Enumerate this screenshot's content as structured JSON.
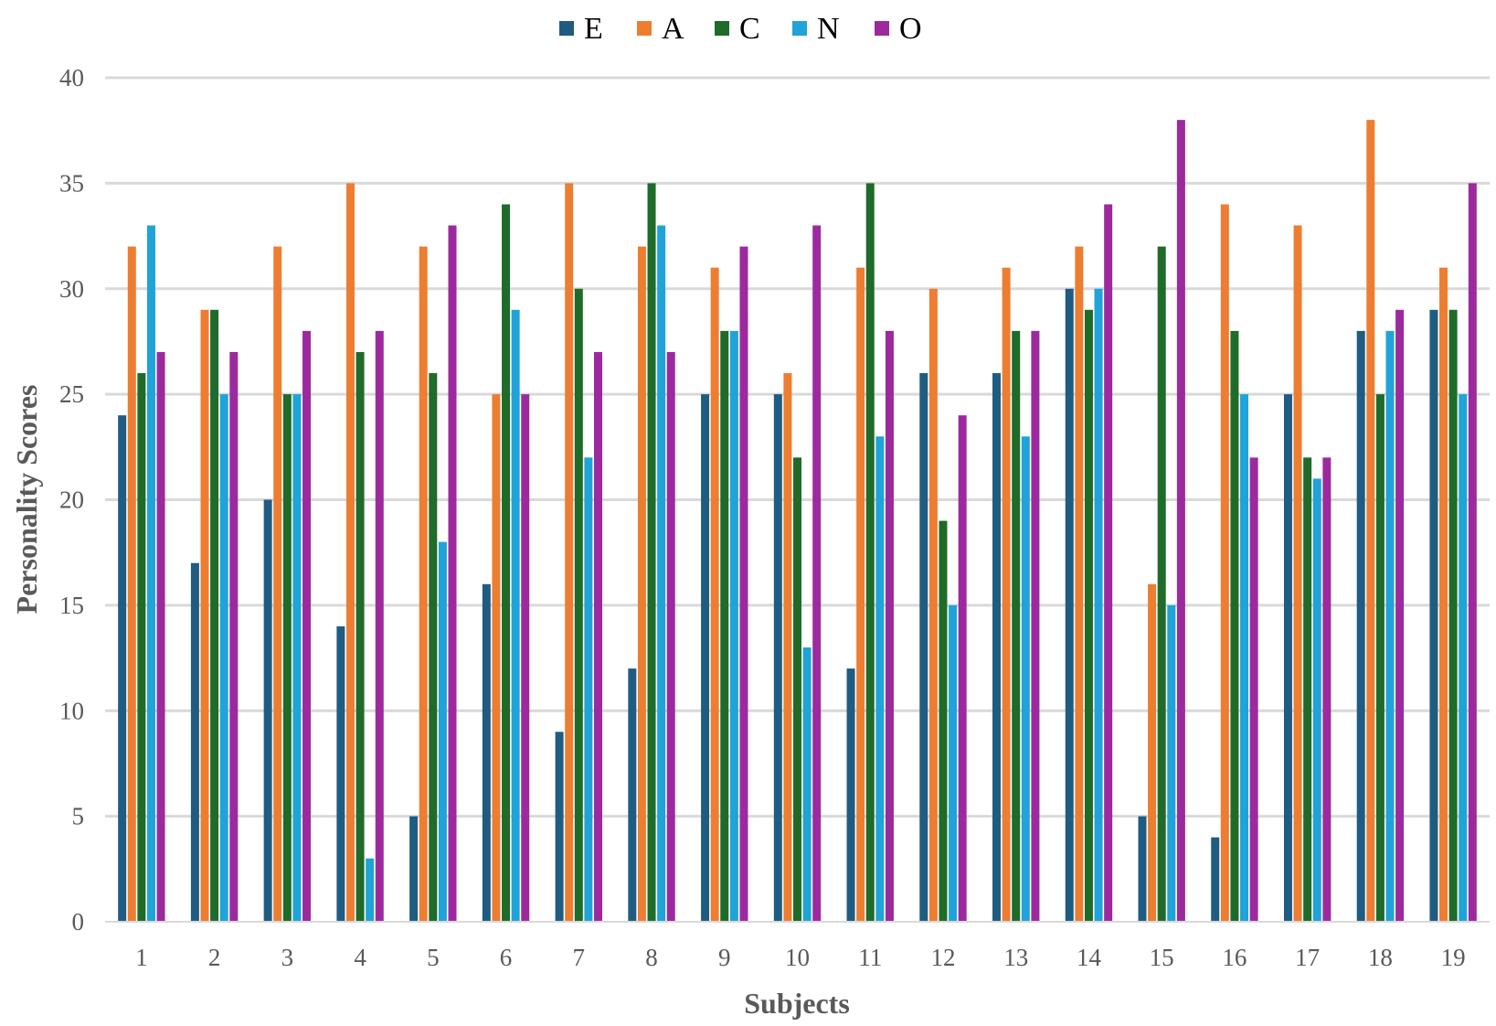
{
  "chart_data": {
    "type": "bar",
    "title": "",
    "xlabel": "Subjects",
    "ylabel": "Personality Scores",
    "ylim": [
      0,
      40
    ],
    "yticks": [
      0,
      5,
      10,
      15,
      20,
      25,
      30,
      35,
      40
    ],
    "grid": true,
    "legend": "top-center",
    "categories": [
      "1",
      "2",
      "3",
      "4",
      "5",
      "6",
      "7",
      "8",
      "9",
      "10",
      "11",
      "12",
      "13",
      "14",
      "15",
      "16",
      "17",
      "18",
      "19"
    ],
    "series": [
      {
        "name": "E",
        "color": "#1f5c82",
        "values": [
          24,
          17,
          20,
          14,
          5,
          16,
          9,
          12,
          25,
          25,
          12,
          26,
          26,
          30,
          5,
          4,
          25,
          28,
          29
        ]
      },
      {
        "name": "A",
        "color": "#ed7d31",
        "values": [
          32,
          29,
          32,
          35,
          32,
          25,
          35,
          32,
          31,
          26,
          31,
          30,
          31,
          32,
          16,
          34,
          33,
          38,
          31
        ]
      },
      {
        "name": "C",
        "color": "#1e6b2a",
        "values": [
          26,
          29,
          25,
          27,
          26,
          34,
          30,
          35,
          28,
          22,
          35,
          19,
          28,
          29,
          32,
          28,
          22,
          25,
          29
        ]
      },
      {
        "name": "N",
        "color": "#1fa3d8",
        "values": [
          33,
          25,
          25,
          3,
          18,
          29,
          22,
          33,
          28,
          13,
          23,
          15,
          23,
          30,
          15,
          25,
          21,
          28,
          25
        ]
      },
      {
        "name": "O",
        "color": "#9c2a9e",
        "values": [
          27,
          27,
          28,
          28,
          33,
          25,
          27,
          27,
          32,
          33,
          28,
          24,
          28,
          34,
          38,
          22,
          22,
          29,
          35
        ]
      }
    ]
  }
}
